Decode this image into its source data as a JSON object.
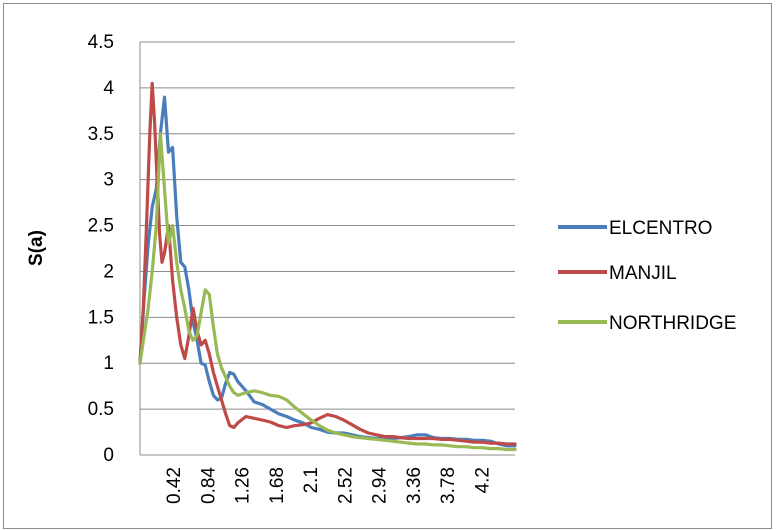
{
  "chart_data": {
    "type": "line",
    "title": "",
    "xlabel": "",
    "ylabel": "S(a)",
    "ylim": [
      0,
      4.5
    ],
    "yticks": [
      "0",
      "0.5",
      "1",
      "1.5",
      "2",
      "2.5",
      "3",
      "3.5",
      "4",
      "4.5"
    ],
    "xlim": [
      0,
      4.6
    ],
    "xticks": [
      "0.42",
      "0.84",
      "1.26",
      "1.68",
      "2.1",
      "2.52",
      "2.94",
      "3.36",
      "3.78",
      "4.2"
    ],
    "grid": "horizontal",
    "legend_position": "right",
    "series": [
      {
        "name": "ELCENTRO",
        "color": "#4a7ebb",
        "points": [
          [
            0,
            1.0
          ],
          [
            0.05,
            1.7
          ],
          [
            0.1,
            2.3
          ],
          [
            0.15,
            2.7
          ],
          [
            0.2,
            2.9
          ],
          [
            0.25,
            3.5
          ],
          [
            0.3,
            3.9
          ],
          [
            0.35,
            3.3
          ],
          [
            0.4,
            3.35
          ],
          [
            0.45,
            2.6
          ],
          [
            0.5,
            2.1
          ],
          [
            0.55,
            2.05
          ],
          [
            0.6,
            1.8
          ],
          [
            0.65,
            1.45
          ],
          [
            0.7,
            1.25
          ],
          [
            0.75,
            1.0
          ],
          [
            0.8,
            0.98
          ],
          [
            0.85,
            0.8
          ],
          [
            0.9,
            0.65
          ],
          [
            0.95,
            0.6
          ],
          [
            1.0,
            0.62
          ],
          [
            1.05,
            0.78
          ],
          [
            1.1,
            0.9
          ],
          [
            1.15,
            0.88
          ],
          [
            1.2,
            0.8
          ],
          [
            1.3,
            0.7
          ],
          [
            1.4,
            0.58
          ],
          [
            1.5,
            0.55
          ],
          [
            1.6,
            0.5
          ],
          [
            1.7,
            0.45
          ],
          [
            1.8,
            0.42
          ],
          [
            1.9,
            0.38
          ],
          [
            2.0,
            0.35
          ],
          [
            2.1,
            0.3
          ],
          [
            2.2,
            0.28
          ],
          [
            2.3,
            0.25
          ],
          [
            2.4,
            0.24
          ],
          [
            2.5,
            0.24
          ],
          [
            2.6,
            0.22
          ],
          [
            2.7,
            0.2
          ],
          [
            2.8,
            0.19
          ],
          [
            2.9,
            0.18
          ],
          [
            3.0,
            0.18
          ],
          [
            3.1,
            0.18
          ],
          [
            3.2,
            0.19
          ],
          [
            3.3,
            0.2
          ],
          [
            3.4,
            0.22
          ],
          [
            3.5,
            0.22
          ],
          [
            3.6,
            0.19
          ],
          [
            3.7,
            0.18
          ],
          [
            3.8,
            0.18
          ],
          [
            3.9,
            0.17
          ],
          [
            4.0,
            0.17
          ],
          [
            4.1,
            0.16
          ],
          [
            4.2,
            0.16
          ],
          [
            4.3,
            0.15
          ],
          [
            4.4,
            0.12
          ],
          [
            4.5,
            0.1
          ],
          [
            4.6,
            0.1
          ]
        ]
      },
      {
        "name": "MANJIL",
        "color": "#be4b48",
        "points": [
          [
            0,
            1.0
          ],
          [
            0.04,
            1.6
          ],
          [
            0.08,
            2.5
          ],
          [
            0.12,
            3.5
          ],
          [
            0.15,
            4.05
          ],
          [
            0.18,
            3.6
          ],
          [
            0.21,
            3.0
          ],
          [
            0.24,
            2.4
          ],
          [
            0.27,
            2.1
          ],
          [
            0.3,
            2.2
          ],
          [
            0.35,
            2.5
          ],
          [
            0.4,
            1.9
          ],
          [
            0.45,
            1.5
          ],
          [
            0.5,
            1.2
          ],
          [
            0.55,
            1.05
          ],
          [
            0.6,
            1.3
          ],
          [
            0.65,
            1.6
          ],
          [
            0.7,
            1.35
          ],
          [
            0.75,
            1.2
          ],
          [
            0.8,
            1.25
          ],
          [
            0.85,
            1.1
          ],
          [
            0.9,
            0.9
          ],
          [
            0.95,
            0.75
          ],
          [
            1.0,
            0.6
          ],
          [
            1.05,
            0.45
          ],
          [
            1.1,
            0.32
          ],
          [
            1.15,
            0.3
          ],
          [
            1.2,
            0.35
          ],
          [
            1.3,
            0.42
          ],
          [
            1.4,
            0.4
          ],
          [
            1.5,
            0.38
          ],
          [
            1.6,
            0.36
          ],
          [
            1.7,
            0.32
          ],
          [
            1.8,
            0.3
          ],
          [
            1.9,
            0.32
          ],
          [
            2.0,
            0.33
          ],
          [
            2.1,
            0.35
          ],
          [
            2.2,
            0.4
          ],
          [
            2.3,
            0.44
          ],
          [
            2.4,
            0.42
          ],
          [
            2.5,
            0.38
          ],
          [
            2.6,
            0.33
          ],
          [
            2.7,
            0.28
          ],
          [
            2.8,
            0.24
          ],
          [
            2.9,
            0.22
          ],
          [
            3.0,
            0.2
          ],
          [
            3.1,
            0.2
          ],
          [
            3.2,
            0.19
          ],
          [
            3.3,
            0.18
          ],
          [
            3.4,
            0.18
          ],
          [
            3.5,
            0.18
          ],
          [
            3.6,
            0.18
          ],
          [
            3.7,
            0.17
          ],
          [
            3.8,
            0.17
          ],
          [
            3.9,
            0.16
          ],
          [
            4.0,
            0.15
          ],
          [
            4.1,
            0.14
          ],
          [
            4.2,
            0.14
          ],
          [
            4.3,
            0.13
          ],
          [
            4.4,
            0.13
          ],
          [
            4.5,
            0.12
          ],
          [
            4.6,
            0.12
          ]
        ]
      },
      {
        "name": "NORTHRIDGE",
        "color": "#98b954",
        "points": [
          [
            0,
            1.0
          ],
          [
            0.05,
            1.3
          ],
          [
            0.1,
            1.6
          ],
          [
            0.15,
            2.0
          ],
          [
            0.2,
            2.5
          ],
          [
            0.25,
            3.5
          ],
          [
            0.3,
            2.9
          ],
          [
            0.35,
            2.3
          ],
          [
            0.4,
            2.5
          ],
          [
            0.45,
            2.1
          ],
          [
            0.5,
            1.8
          ],
          [
            0.55,
            1.6
          ],
          [
            0.6,
            1.35
          ],
          [
            0.65,
            1.25
          ],
          [
            0.7,
            1.3
          ],
          [
            0.75,
            1.55
          ],
          [
            0.8,
            1.8
          ],
          [
            0.85,
            1.75
          ],
          [
            0.9,
            1.4
          ],
          [
            0.95,
            1.1
          ],
          [
            1.0,
            0.95
          ],
          [
            1.05,
            0.85
          ],
          [
            1.1,
            0.75
          ],
          [
            1.15,
            0.68
          ],
          [
            1.2,
            0.65
          ],
          [
            1.3,
            0.68
          ],
          [
            1.4,
            0.7
          ],
          [
            1.5,
            0.68
          ],
          [
            1.6,
            0.65
          ],
          [
            1.7,
            0.64
          ],
          [
            1.8,
            0.6
          ],
          [
            1.9,
            0.52
          ],
          [
            2.0,
            0.45
          ],
          [
            2.1,
            0.38
          ],
          [
            2.2,
            0.32
          ],
          [
            2.3,
            0.27
          ],
          [
            2.4,
            0.24
          ],
          [
            2.5,
            0.22
          ],
          [
            2.6,
            0.2
          ],
          [
            2.7,
            0.19
          ],
          [
            2.8,
            0.18
          ],
          [
            2.9,
            0.17
          ],
          [
            3.0,
            0.16
          ],
          [
            3.1,
            0.15
          ],
          [
            3.2,
            0.14
          ],
          [
            3.3,
            0.13
          ],
          [
            3.4,
            0.12
          ],
          [
            3.5,
            0.12
          ],
          [
            3.6,
            0.11
          ],
          [
            3.7,
            0.11
          ],
          [
            3.8,
            0.1
          ],
          [
            3.9,
            0.09
          ],
          [
            4.0,
            0.09
          ],
          [
            4.1,
            0.08
          ],
          [
            4.2,
            0.08
          ],
          [
            4.3,
            0.07
          ],
          [
            4.4,
            0.07
          ],
          [
            4.5,
            0.06
          ],
          [
            4.6,
            0.06
          ]
        ]
      }
    ]
  }
}
